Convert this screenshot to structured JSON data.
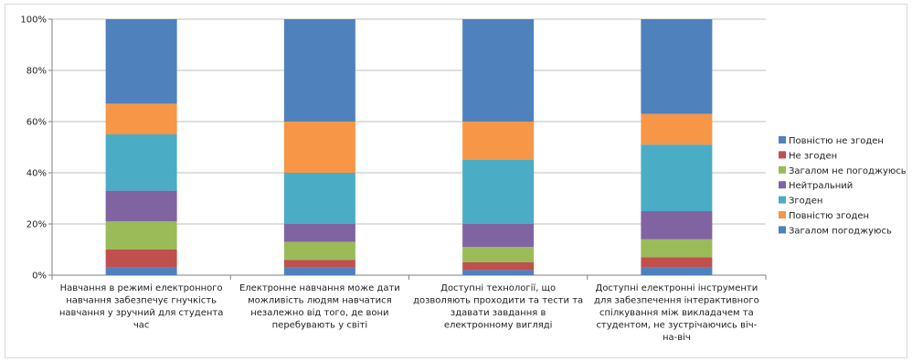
{
  "chart_data": {
    "type": "bar",
    "stacked": true,
    "percent": true,
    "ylim": [
      0,
      100
    ],
    "y_ticks": [
      "0%",
      "20%",
      "40%",
      "60%",
      "80%",
      "100%"
    ],
    "grid": true,
    "legend_position": "right",
    "categories": [
      [
        "Навчання в режимі електронного",
        "навчання забезпечує гнучкість",
        "навчання у зручний для студента",
        "час"
      ],
      [
        "Електронне навчання може дати",
        "можливість людям навчатися",
        "незалежно від того, де вони",
        "перебувають у світі"
      ],
      [
        "Доступні технології, що",
        "дозволяють проходити та тести та",
        "здавати завдання в",
        "електронному вигляді"
      ],
      [
        "Доступні електронні інструменти",
        "для забезпечення інтерактивного",
        "спілкування між викладачем та",
        "студентом, не зустрічаючись віч-",
        "на-віч"
      ]
    ],
    "series": [
      {
        "name": "Загалом погоджуюсь",
        "color": "#4f81bd",
        "values": [
          3,
          3,
          2,
          3
        ]
      },
      {
        "name": "Не згоден",
        "color": "#c0504d",
        "values": [
          7,
          3,
          3,
          4
        ]
      },
      {
        "name": "Загалом не погоджуюсь",
        "color": "#9bbb59",
        "values": [
          11,
          7,
          6,
          7
        ]
      },
      {
        "name": "Нейтральний",
        "color": "#8064a2",
        "values": [
          12,
          7,
          9,
          11
        ]
      },
      {
        "name": "Згоден",
        "color": "#4bacc6",
        "values": [
          22,
          20,
          25,
          26
        ]
      },
      {
        "name": "Повністю згоден",
        "color": "#f79646",
        "values": [
          12,
          20,
          15,
          12
        ]
      },
      {
        "name": "Повністю не згоден",
        "color": "#4f81bd",
        "values": [
          33,
          40,
          40,
          37
        ]
      }
    ],
    "legend_order": [
      "Повністю не згоден",
      "Не згоден",
      "Загалом не погоджуюсь",
      "Нейтральний",
      "Згоден",
      "Повністю згоден",
      "Загалом погоджуюсь"
    ]
  }
}
